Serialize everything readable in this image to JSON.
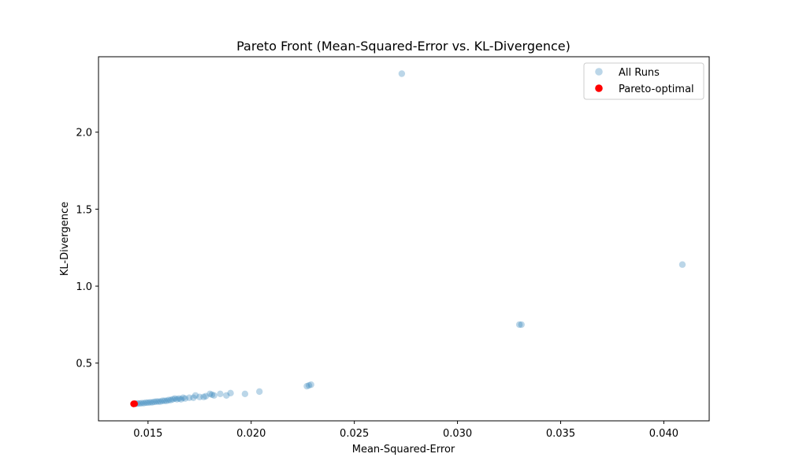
{
  "chart_data": {
    "type": "scatter",
    "title": "Pareto Front (Mean-Squared-Error vs. KL-Divergence)",
    "xlabel": "Mean-Squared-Error",
    "ylabel": "KL-Divergence",
    "xlim": [
      0.0126,
      0.0422
    ],
    "ylim": [
      0.125,
      2.49
    ],
    "x_ticks": [
      {
        "value": 0.015,
        "label": "0.015"
      },
      {
        "value": 0.02,
        "label": "0.020"
      },
      {
        "value": 0.025,
        "label": "0.025"
      },
      {
        "value": 0.03,
        "label": "0.030"
      },
      {
        "value": 0.035,
        "label": "0.035"
      },
      {
        "value": 0.04,
        "label": "0.040"
      }
    ],
    "y_ticks": [
      {
        "value": 0.5,
        "label": "0.5"
      },
      {
        "value": 1.0,
        "label": "1.0"
      },
      {
        "value": 1.5,
        "label": "1.5"
      },
      {
        "value": 2.0,
        "label": "2.0"
      }
    ],
    "grid": false,
    "legend_position": "top-right",
    "series": [
      {
        "name": "All Runs",
        "color": "#1f77b4",
        "alpha": 0.3,
        "points": [
          [
            0.0273,
            2.38
          ],
          [
            0.0409,
            1.14
          ],
          [
            0.033,
            0.75
          ],
          [
            0.0331,
            0.75
          ],
          [
            0.0227,
            0.35
          ],
          [
            0.0228,
            0.355
          ],
          [
            0.0229,
            0.36
          ],
          [
            0.0204,
            0.315
          ],
          [
            0.0197,
            0.3
          ],
          [
            0.019,
            0.305
          ],
          [
            0.0188,
            0.29
          ],
          [
            0.0185,
            0.3
          ],
          [
            0.0182,
            0.29
          ],
          [
            0.0181,
            0.295
          ],
          [
            0.018,
            0.3
          ],
          [
            0.0178,
            0.285
          ],
          [
            0.0177,
            0.28
          ],
          [
            0.0175,
            0.28
          ],
          [
            0.0173,
            0.29
          ],
          [
            0.0172,
            0.275
          ],
          [
            0.017,
            0.275
          ],
          [
            0.0168,
            0.27
          ],
          [
            0.0167,
            0.275
          ],
          [
            0.0166,
            0.265
          ],
          [
            0.0165,
            0.27
          ],
          [
            0.0164,
            0.265
          ],
          [
            0.0163,
            0.27
          ],
          [
            0.0162,
            0.265
          ],
          [
            0.0161,
            0.26
          ],
          [
            0.016,
            0.26
          ],
          [
            0.0159,
            0.255
          ],
          [
            0.0158,
            0.255
          ],
          [
            0.0157,
            0.255
          ],
          [
            0.0156,
            0.25
          ],
          [
            0.0155,
            0.25
          ],
          [
            0.0154,
            0.25
          ],
          [
            0.0153,
            0.248
          ],
          [
            0.0152,
            0.245
          ],
          [
            0.0151,
            0.245
          ],
          [
            0.015,
            0.243
          ],
          [
            0.0149,
            0.243
          ],
          [
            0.0148,
            0.24
          ],
          [
            0.0147,
            0.24
          ],
          [
            0.0146,
            0.238
          ],
          [
            0.0145,
            0.238
          ],
          [
            0.0144,
            0.236
          ]
        ]
      },
      {
        "name": "Pareto-optimal",
        "color": "#ff0000",
        "alpha": 1.0,
        "points": [
          [
            0.0143,
            0.235
          ],
          [
            0.01435,
            0.236
          ]
        ]
      }
    ]
  }
}
